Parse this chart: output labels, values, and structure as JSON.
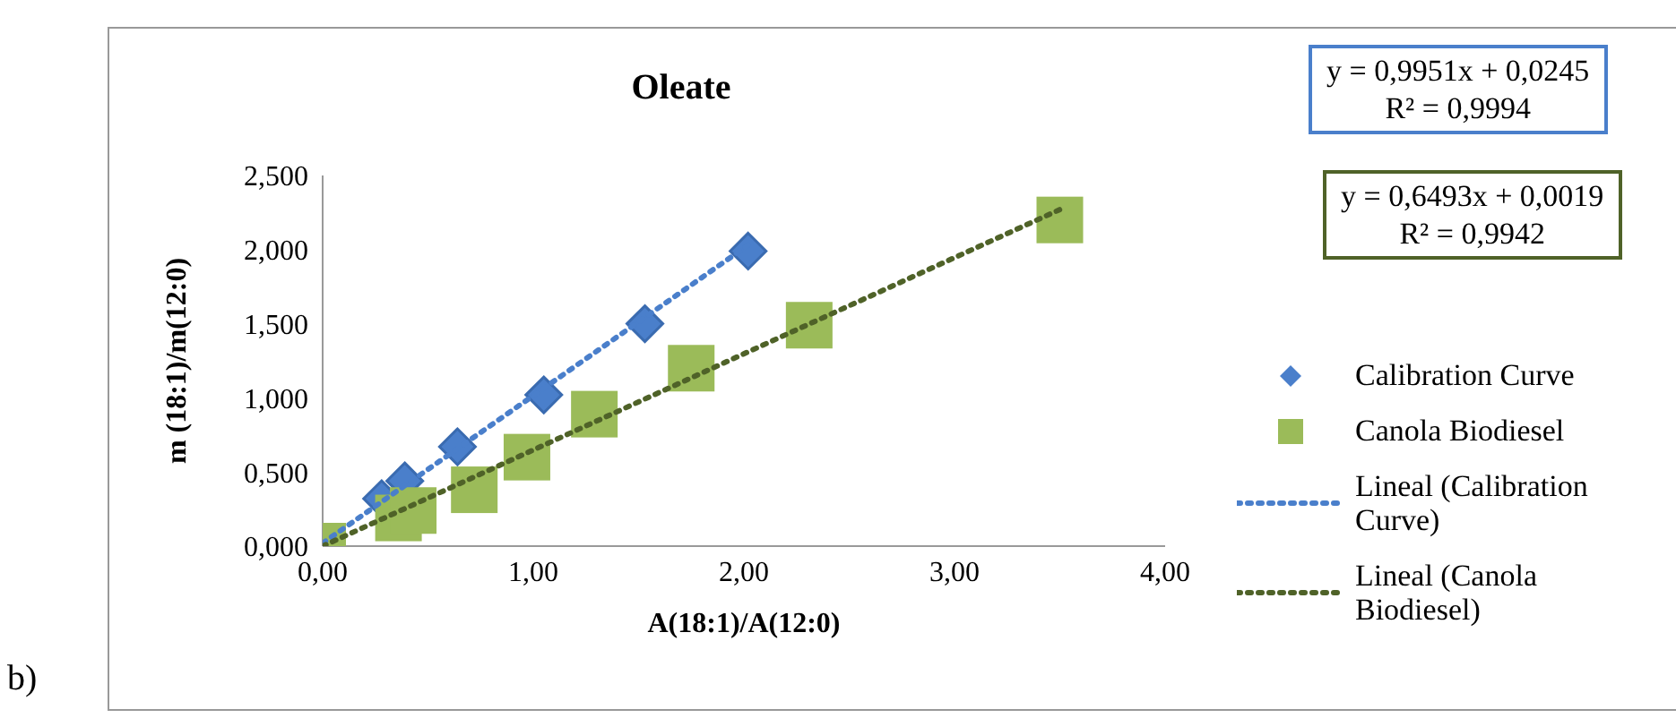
{
  "chart_data": {
    "type": "scatter",
    "title": "Oleate",
    "xlabel": "A(18:1)/A(12:0)",
    "ylabel": "m (18:1)/m(12:0)",
    "xlim": [
      0,
      4
    ],
    "xticks": [
      {
        "value": 0,
        "label": "0,00"
      },
      {
        "value": 1,
        "label": "1,00"
      },
      {
        "value": 2,
        "label": "2,00"
      },
      {
        "value": 3,
        "label": "3,00"
      },
      {
        "value": 4,
        "label": "4,00"
      }
    ],
    "ylim": [
      0,
      2.5
    ],
    "yticks": [
      {
        "value": 0,
        "label": "0,000"
      },
      {
        "value": 0.5,
        "label": "0,500"
      },
      {
        "value": 1,
        "label": "1,000"
      },
      {
        "value": 1.5,
        "label": "1,500"
      },
      {
        "value": 2,
        "label": "2,000"
      },
      {
        "value": 2.5,
        "label": "2,500"
      }
    ],
    "legend": "right",
    "series": [
      {
        "name": "Calibration Curve",
        "marker": "diamond",
        "color": "#4a7fcb",
        "x": [
          0.28,
          0.39,
          0.64,
          1.05,
          1.53,
          2.02
        ],
        "values": [
          0.32,
          0.44,
          0.67,
          1.02,
          1.5,
          1.99
        ]
      },
      {
        "name": "Canola Biodiesel",
        "marker": "square",
        "color": "#9bbb59",
        "x": [
          0,
          0.36,
          0.43,
          0.72,
          0.97,
          1.29,
          1.75,
          2.31,
          3.5
        ],
        "values": [
          0,
          0.19,
          0.24,
          0.38,
          0.6,
          0.89,
          1.2,
          1.49,
          2.2
        ]
      },
      {
        "name": "Lineal (Calibration Curve)",
        "type": "line",
        "line_style": "dotted",
        "marker": "none",
        "color": "#4a7fcb",
        "x": [
          0,
          2.02
        ],
        "values": [
          0.02,
          2.03
        ]
      },
      {
        "name": "Lineal (Canola Biodiesel)",
        "type": "line",
        "line_style": "dotted",
        "marker": "none",
        "color": "#4f6228",
        "x": [
          0,
          3.5
        ],
        "values": [
          0,
          2.27
        ]
      }
    ],
    "annotations": [
      "y = 0,9951x + 0,0245\nR² = 0,9994",
      "y = 0,6493x + 0,0019\nR² = 0,9942",
      "b)"
    ]
  }
}
